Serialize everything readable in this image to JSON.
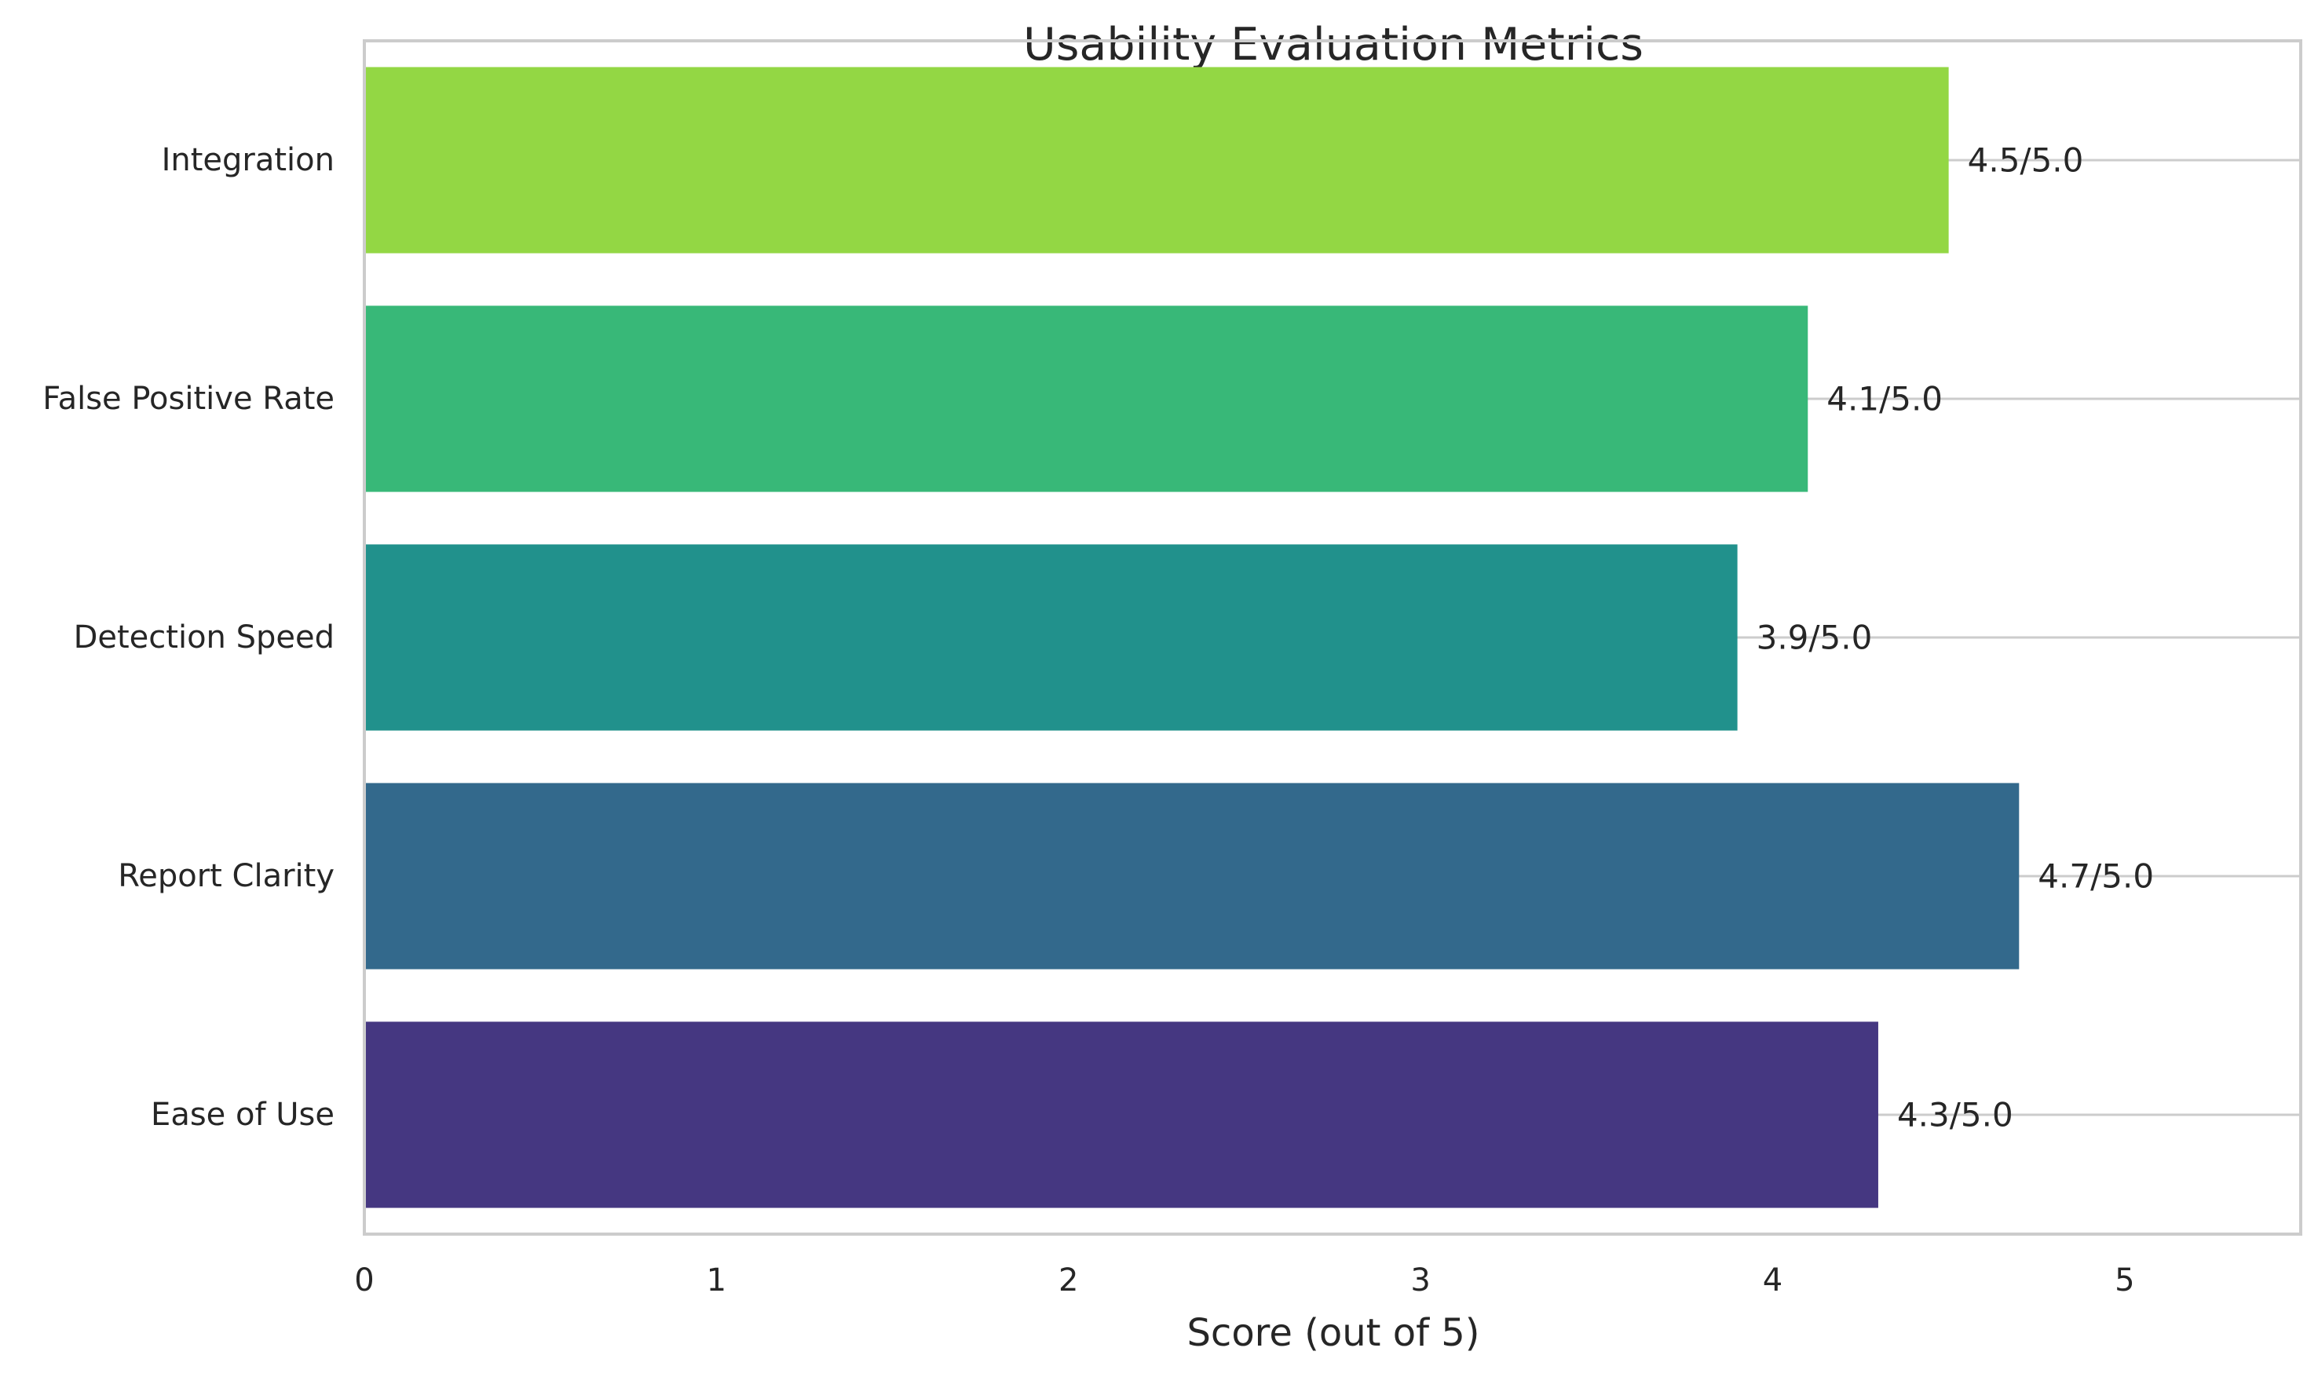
{
  "chart_data": {
    "type": "bar",
    "orientation": "horizontal",
    "title": "Usability Evaluation Metrics",
    "xlabel": "Score (out of 5)",
    "ylabel": "",
    "categories": [
      "Ease of Use",
      "Report Clarity",
      "Detection Speed",
      "False Positive Rate",
      "Integration"
    ],
    "values": [
      4.3,
      4.7,
      3.9,
      4.1,
      4.5
    ],
    "value_labels": [
      "4.3/5.0",
      "4.7/5.0",
      "3.9/5.0",
      "4.1/5.0",
      "4.5/5.0"
    ],
    "colors": [
      "#453781",
      "#33698c",
      "#21918c",
      "#38b878",
      "#93d744"
    ],
    "xlim": [
      0,
      5.5
    ],
    "xticks": [
      0,
      1,
      2,
      3,
      4,
      5
    ],
    "xtick_labels": [
      "0",
      "1",
      "2",
      "3",
      "4",
      "5"
    ],
    "grid": "horizontal gridlines at category positions",
    "legend": "none"
  }
}
